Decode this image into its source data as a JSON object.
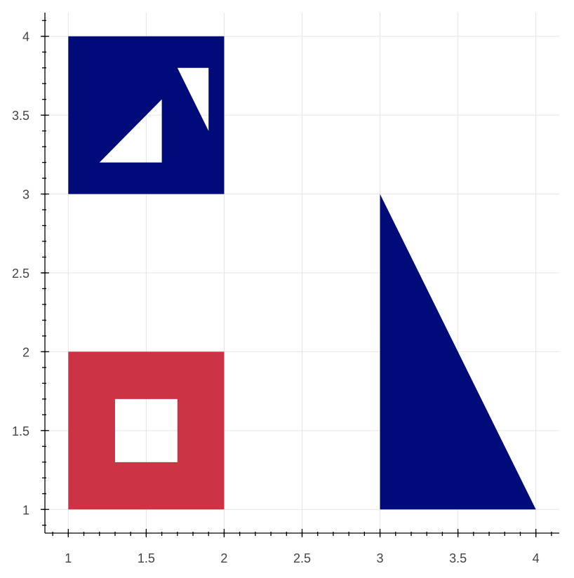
{
  "chart_data": {
    "type": "polygon",
    "title": "",
    "xlabel": "",
    "ylabel": "",
    "xlim": [
      0.85,
      4.15
    ],
    "ylim": [
      0.85,
      4.15
    ],
    "grid": true,
    "x_ticks": [
      1,
      1.5,
      2,
      2.5,
      3,
      3.5,
      4
    ],
    "y_ticks": [
      1,
      1.5,
      2,
      2.5,
      3,
      3.5,
      4
    ],
    "x_tick_labels": [
      "1",
      "1.5",
      "2",
      "2.5",
      "3",
      "3.5",
      "4"
    ],
    "y_tick_labels": [
      "1",
      "1.5",
      "2",
      "2.5",
      "3",
      "3.5",
      "4"
    ],
    "shapes": [
      {
        "name": "square-with-triangle-holes",
        "color": "#000b7a",
        "exterior": [
          [
            1,
            3
          ],
          [
            1,
            4
          ],
          [
            2,
            4
          ],
          [
            2,
            3
          ]
        ],
        "holes": [
          [
            [
              1.2,
              3.2
            ],
            [
              1.6,
              3.2
            ],
            [
              1.6,
              3.6
            ]
          ],
          [
            [
              1.7,
              3.8
            ],
            [
              1.9,
              3.8
            ],
            [
              1.9,
              3.4
            ]
          ]
        ]
      },
      {
        "name": "square-with-square-hole",
        "color": "#cc3344",
        "exterior": [
          [
            1,
            1
          ],
          [
            1,
            2
          ],
          [
            2,
            2
          ],
          [
            2,
            1
          ]
        ],
        "holes": [
          [
            [
              1.3,
              1.3
            ],
            [
              1.3,
              1.7
            ],
            [
              1.7,
              1.7
            ],
            [
              1.7,
              1.3
            ]
          ]
        ]
      },
      {
        "name": "triangle",
        "color": "#000b7a",
        "exterior": [
          [
            3,
            1
          ],
          [
            3,
            3
          ],
          [
            4,
            1
          ]
        ],
        "holes": []
      }
    ]
  }
}
